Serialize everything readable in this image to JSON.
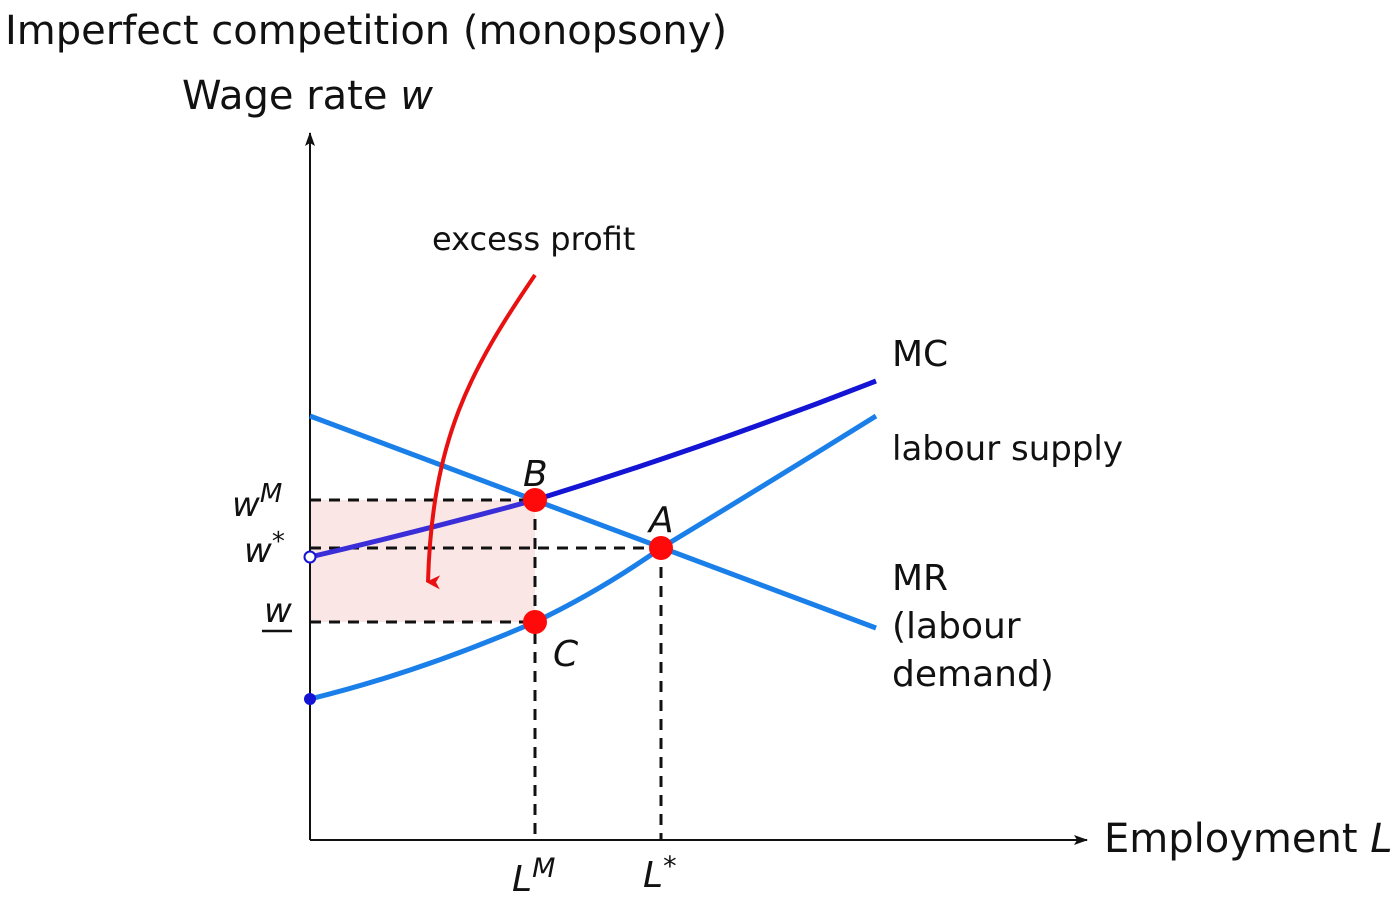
{
  "title": "Imperfect competition (monopsony)",
  "y_axis_label": "Wage rate",
  "y_axis_var": "w",
  "x_axis_label": "Employment",
  "x_axis_var": "L",
  "annotation": "excess profit",
  "curves": {
    "mc": "MC",
    "supply": "labour supply",
    "demand_line1": "MR",
    "demand_line2": "(labour",
    "demand_line3": "demand)"
  },
  "points": {
    "a": "A",
    "b": "B",
    "c": "C"
  },
  "ticks": {
    "y_wm_base": "w",
    "y_wm_sup": "M",
    "y_wstar_base": "w",
    "y_wstar_sup": "*",
    "y_wunder": "w",
    "x_lm_base": "L",
    "x_lm_sup": "M",
    "x_lstar_base": "L",
    "x_lstar_sup": "*"
  },
  "colors": {
    "supply_demand": "#1a7fe8",
    "mc": "#1414d4",
    "mc_segment_left": "#3a2ed8",
    "point": "#ff0a0a",
    "arrow": "#e81010",
    "shaded_area": "#fbe6e6",
    "guides": "#111111",
    "axis": "#111111"
  }
}
